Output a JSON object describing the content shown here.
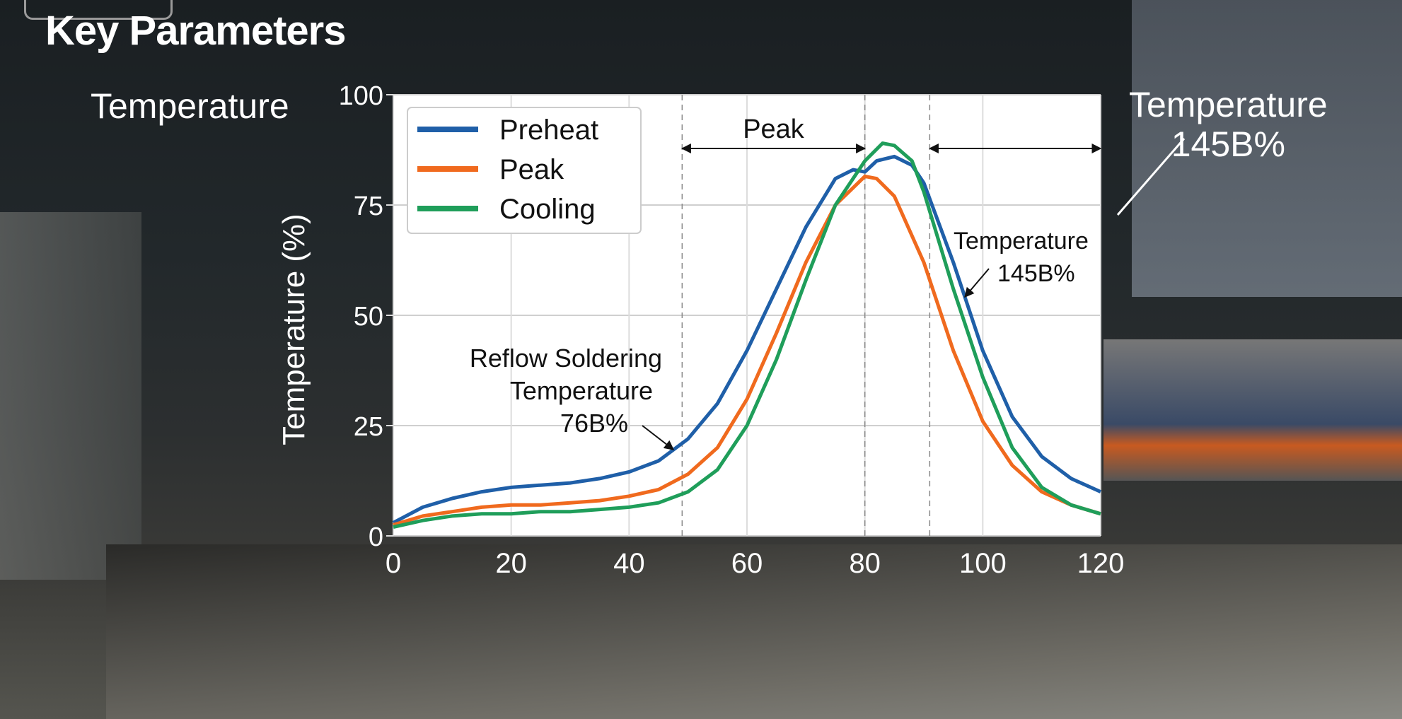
{
  "title": "Key Parameters",
  "left_label": "Temperature",
  "right_annotation": {
    "line1": "Temperature",
    "line2": "145B%"
  },
  "chart_data": {
    "type": "line",
    "ylabel": "Temperature (%)",
    "xlabel": "",
    "xlim": [
      0,
      120
    ],
    "ylim": [
      0,
      100
    ],
    "xticks": [
      0,
      20,
      40,
      60,
      80,
      100,
      120
    ],
    "yticks": [
      0,
      25,
      50,
      75,
      100
    ],
    "grid": true,
    "legend_placement": "top-left",
    "vlines": [
      49,
      80,
      91
    ],
    "series": [
      {
        "name": "Preheat",
        "color": "#1f5fa8",
        "x": [
          0,
          5,
          10,
          15,
          20,
          25,
          30,
          35,
          40,
          45,
          50,
          55,
          60,
          65,
          70,
          75,
          78,
          80,
          82,
          85,
          88,
          90,
          95,
          100,
          105,
          110,
          115,
          120
        ],
        "y": [
          3,
          6.5,
          8.5,
          10,
          11,
          11.5,
          12,
          13,
          14.5,
          17,
          22,
          30,
          42,
          56,
          70,
          81,
          83,
          82.5,
          85,
          86,
          84,
          80,
          62,
          42,
          27,
          18,
          13,
          10
        ]
      },
      {
        "name": "Peak",
        "color": "#f06a1e",
        "x": [
          0,
          5,
          10,
          15,
          20,
          25,
          30,
          35,
          40,
          45,
          50,
          55,
          60,
          65,
          70,
          75,
          80,
          82,
          85,
          90,
          95,
          100,
          105,
          110,
          115,
          120
        ],
        "y": [
          2.5,
          4.5,
          5.5,
          6.5,
          7,
          7,
          7.5,
          8,
          9,
          10.5,
          14,
          20,
          31,
          46,
          62,
          75,
          81.5,
          81,
          77,
          62,
          42,
          26,
          16,
          10,
          7,
          5
        ]
      },
      {
        "name": "Cooling",
        "color": "#1f9e5a",
        "x": [
          0,
          5,
          10,
          15,
          20,
          25,
          30,
          35,
          40,
          45,
          50,
          55,
          60,
          65,
          70,
          75,
          80,
          83,
          85,
          88,
          90,
          95,
          100,
          105,
          110,
          115,
          120
        ],
        "y": [
          2,
          3.5,
          4.5,
          5,
          5,
          5.5,
          5.5,
          6,
          6.5,
          7.5,
          10,
          15,
          25,
          40,
          58,
          75,
          85,
          89,
          88.5,
          85,
          78,
          56,
          36,
          20,
          11,
          7,
          5
        ]
      }
    ],
    "annotations": [
      {
        "text": "Peak"
      },
      {
        "text": "Reflow Soldering\nTemperature\n76B%"
      },
      {
        "text": "Temperature\n145B%"
      }
    ]
  }
}
